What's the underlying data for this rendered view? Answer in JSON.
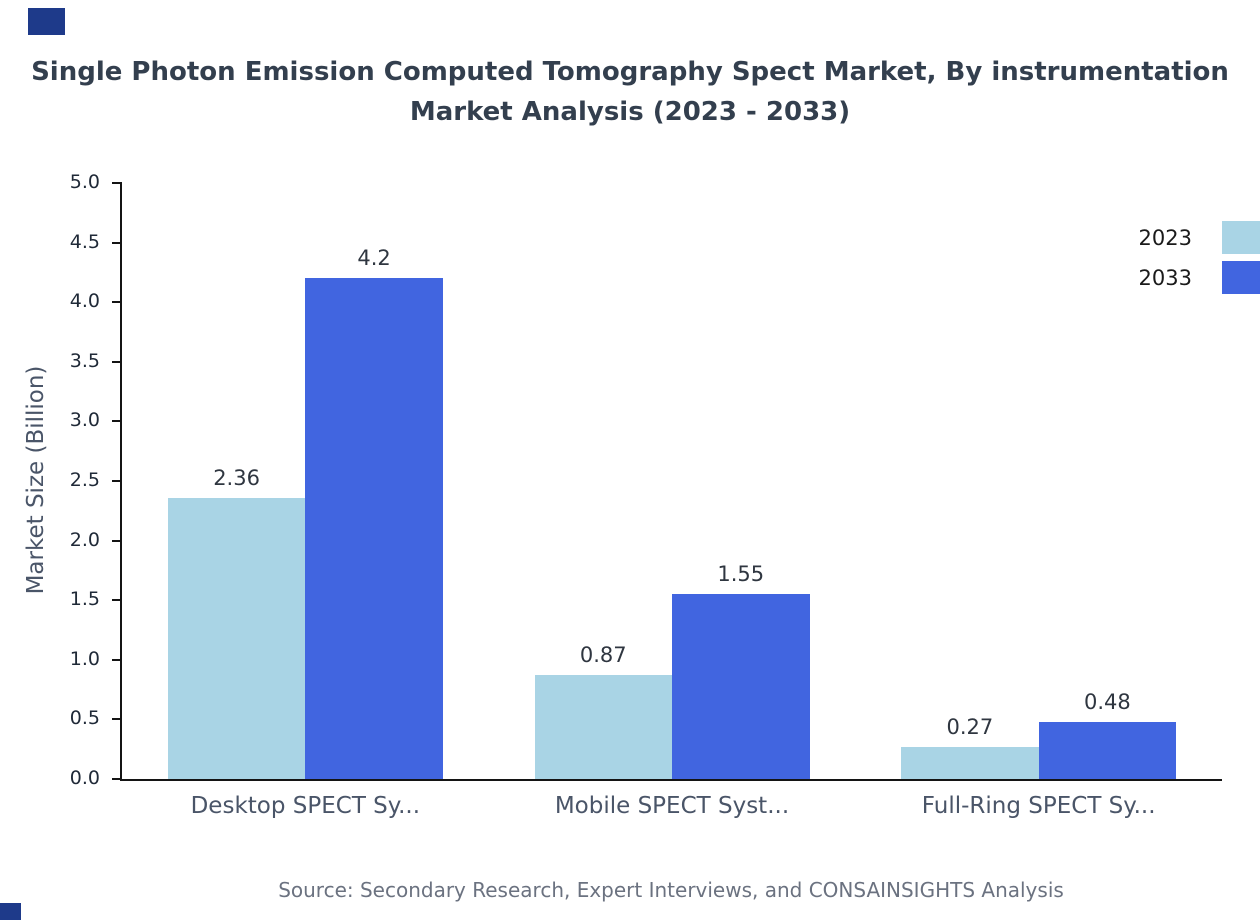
{
  "chart_data": {
    "type": "bar",
    "title": "Single Photon Emission Computed Tomography Spect Market, By instrumentation Market Analysis (2023 - 2033)",
    "title_lines": [
      "Single Photon Emission Computed Tomography Spect Market, By instrumentation",
      "Market Analysis (2023 - 2033)"
    ],
    "ylabel": "Market Size (Billion)",
    "xlabel": "",
    "ylim": [
      0,
      5
    ],
    "ytick_step": 0.5,
    "grid": false,
    "legend_position": "top-right",
    "categories": [
      "Desktop SPECT Sy...",
      "Mobile SPECT Syst...",
      "Full-Ring SPECT Sy..."
    ],
    "series": [
      {
        "name": "2023",
        "color": "#a9d4e5",
        "values": [
          2.36,
          0.87,
          0.27
        ]
      },
      {
        "name": "2033",
        "color": "#4165e0",
        "values": [
          4.2,
          1.55,
          0.48
        ]
      }
    ]
  },
  "source": "Source: Secondary Research, Expert Interviews, and CONSAINSIGHTS Analysis",
  "accent_color": "#1e3a8a"
}
